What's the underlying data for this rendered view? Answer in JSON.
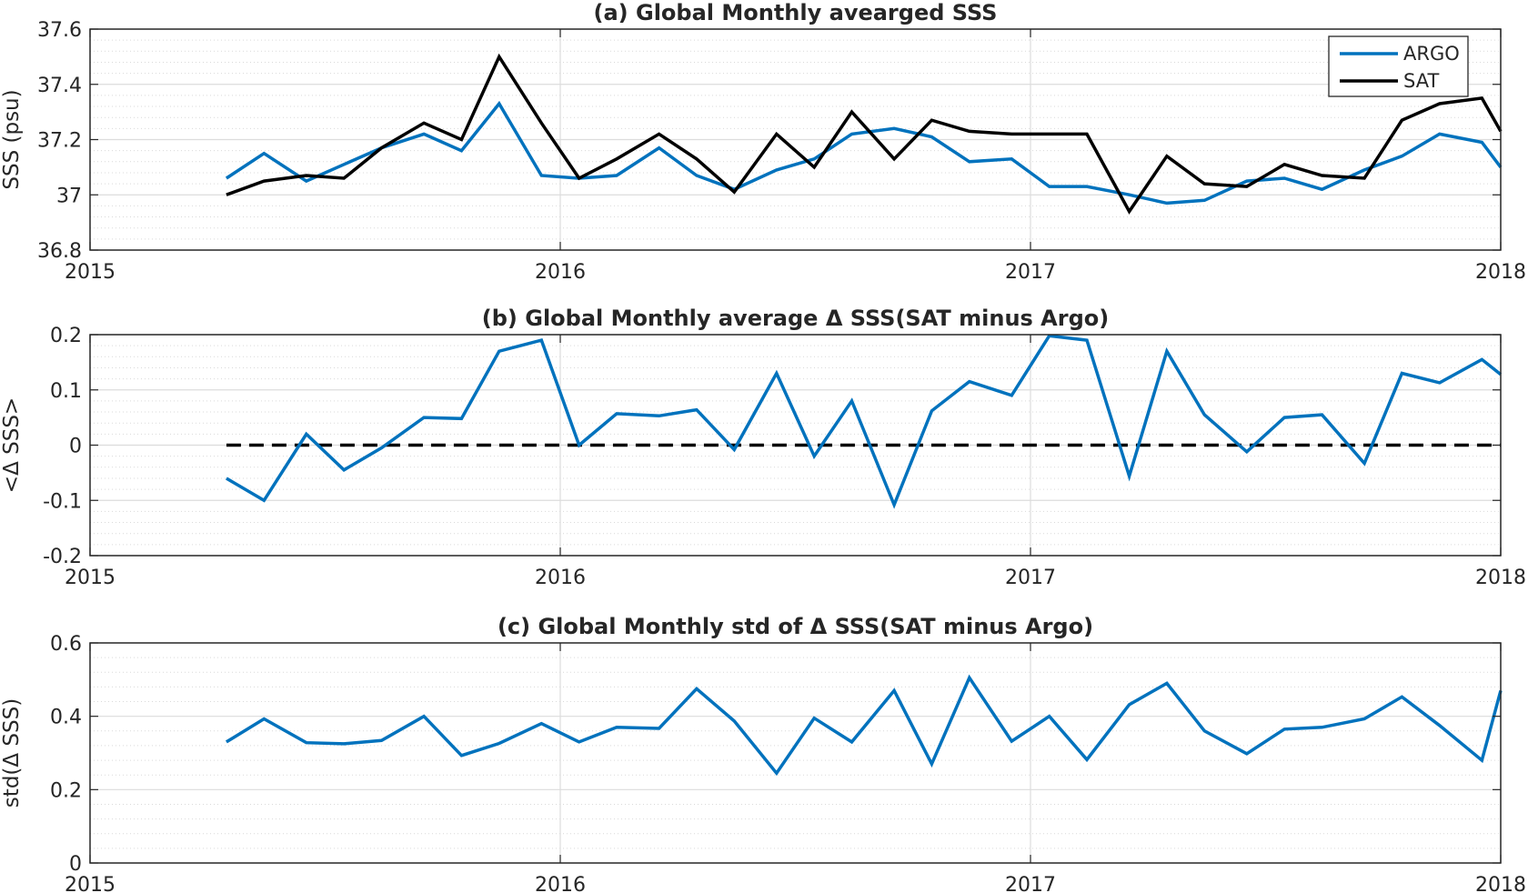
{
  "chart_data": [
    {
      "type": "line",
      "title": "(a) Global Monthly avearged SSS",
      "xlabel": "",
      "ylabel": "SSS (psu)",
      "xlim": [
        2015.0,
        2018.0
      ],
      "ylim": [
        36.8,
        37.6
      ],
      "xticks": [
        2015,
        2016,
        2017,
        2018
      ],
      "xtick_labels": [
        "2015",
        "2016",
        "2017",
        "2018"
      ],
      "yticks": [
        36.8,
        37,
        37.2,
        37.4,
        37.6
      ],
      "ytick_labels": [
        "36.8",
        "37",
        "37.2",
        "37.4",
        "37.6"
      ],
      "grid": true,
      "minor_grid": true,
      "legend": {
        "placement": "top-right",
        "entries": [
          "ARGO",
          "SAT"
        ]
      },
      "x": [
        2015.29,
        2015.37,
        2015.46,
        2015.54,
        2015.62,
        2015.71,
        2015.79,
        2015.87,
        2015.96,
        2016.04,
        2016.12,
        2016.21,
        2016.29,
        2016.37,
        2016.46,
        2016.54,
        2016.62,
        2016.71,
        2016.79,
        2016.87,
        2016.96,
        2017.04,
        2017.12,
        2017.21,
        2017.29,
        2017.37,
        2017.46,
        2017.54,
        2017.62,
        2017.71,
        2017.79,
        2017.87,
        2017.96,
        2018.0
      ],
      "series": [
        {
          "name": "ARGO",
          "color": "#0072BD",
          "values": [
            37.06,
            37.15,
            37.05,
            37.11,
            37.17,
            37.22,
            37.16,
            37.33,
            37.07,
            37.06,
            37.07,
            37.17,
            37.07,
            37.02,
            37.09,
            37.13,
            37.22,
            37.24,
            37.21,
            37.12,
            37.13,
            37.03,
            37.03,
            37.0,
            36.97,
            36.98,
            37.05,
            37.06,
            37.02,
            37.09,
            37.14,
            37.22,
            37.19,
            37.1
          ]
        },
        {
          "name": "SAT",
          "color": "#000000",
          "values": [
            37.0,
            37.05,
            37.07,
            37.06,
            37.17,
            37.26,
            37.2,
            37.5,
            37.26,
            37.06,
            37.13,
            37.22,
            37.13,
            37.01,
            37.22,
            37.1,
            37.3,
            37.13,
            37.27,
            37.23,
            37.22,
            37.22,
            37.22,
            36.94,
            37.14,
            37.04,
            37.03,
            37.11,
            37.07,
            37.06,
            37.27,
            37.33,
            37.35,
            37.23
          ]
        }
      ]
    },
    {
      "type": "line",
      "title": "(b) Global Monthly average Δ SSS(SAT minus Argo)",
      "xlabel": "",
      "ylabel": "<Δ SSS>",
      "xlim": [
        2015.0,
        2018.0
      ],
      "ylim": [
        -0.2,
        0.2
      ],
      "xticks": [
        2015,
        2016,
        2017,
        2018
      ],
      "xtick_labels": [
        "2015",
        "2016",
        "2017",
        "2018"
      ],
      "yticks": [
        -0.2,
        -0.1,
        0,
        0.1,
        0.2
      ],
      "ytick_labels": [
        "-0.2",
        "-0.1",
        "0",
        "0.1",
        "0.2"
      ],
      "grid": true,
      "minor_grid": true,
      "reference_line": {
        "y": 0,
        "style": "dashed",
        "color": "#000000",
        "x_range": [
          2015.29,
          2018.0
        ]
      },
      "x": [
        2015.29,
        2015.37,
        2015.46,
        2015.54,
        2015.62,
        2015.71,
        2015.79,
        2015.87,
        2015.96,
        2016.04,
        2016.12,
        2016.21,
        2016.29,
        2016.37,
        2016.46,
        2016.54,
        2016.62,
        2016.71,
        2016.79,
        2016.87,
        2016.96,
        2017.04,
        2017.12,
        2017.21,
        2017.29,
        2017.37,
        2017.46,
        2017.54,
        2017.62,
        2017.71,
        2017.79,
        2017.87,
        2017.96,
        2018.0
      ],
      "series": [
        {
          "color": "#0072BD",
          "values": [
            -0.06,
            -0.1,
            0.02,
            -0.045,
            -0.005,
            0.05,
            0.048,
            0.17,
            0.19,
            0.0,
            0.057,
            0.053,
            0.064,
            -0.008,
            0.13,
            -0.02,
            0.08,
            -0.108,
            0.062,
            0.115,
            0.09,
            0.198,
            0.19,
            -0.056,
            0.17,
            0.055,
            -0.012,
            0.05,
            0.055,
            -0.033,
            0.13,
            0.113,
            0.155,
            0.128
          ]
        }
      ]
    },
    {
      "type": "line",
      "title": "(c) Global Monthly std of Δ SSS(SAT minus Argo)",
      "xlabel": "",
      "ylabel": "std(Δ SSS)",
      "xlim": [
        2015.0,
        2018.0
      ],
      "ylim": [
        0,
        0.6
      ],
      "xticks": [
        2015,
        2016,
        2017,
        2018
      ],
      "xtick_labels": [
        "2015",
        "2016",
        "2017",
        "2018"
      ],
      "yticks": [
        0,
        0.2,
        0.4,
        0.6
      ],
      "ytick_labels": [
        "0",
        "0.2",
        "0.4",
        "0.6"
      ],
      "grid": true,
      "minor_grid": true,
      "x": [
        2015.29,
        2015.37,
        2015.46,
        2015.54,
        2015.62,
        2015.71,
        2015.79,
        2015.87,
        2015.96,
        2016.04,
        2016.12,
        2016.21,
        2016.29,
        2016.37,
        2016.46,
        2016.54,
        2016.62,
        2016.71,
        2016.79,
        2016.87,
        2016.96,
        2017.04,
        2017.12,
        2017.21,
        2017.29,
        2017.37,
        2017.46,
        2017.54,
        2017.62,
        2017.71,
        2017.79,
        2017.87,
        2017.96,
        2018.0
      ],
      "series": [
        {
          "color": "#0072BD",
          "values": [
            0.33,
            0.393,
            0.328,
            0.325,
            0.334,
            0.4,
            0.293,
            0.326,
            0.38,
            0.33,
            0.37,
            0.367,
            0.475,
            0.387,
            0.245,
            0.395,
            0.33,
            0.47,
            0.27,
            0.505,
            0.332,
            0.4,
            0.282,
            0.432,
            0.49,
            0.36,
            0.298,
            0.365,
            0.37,
            0.393,
            0.453,
            0.375,
            0.28,
            0.47
          ]
        }
      ]
    }
  ]
}
